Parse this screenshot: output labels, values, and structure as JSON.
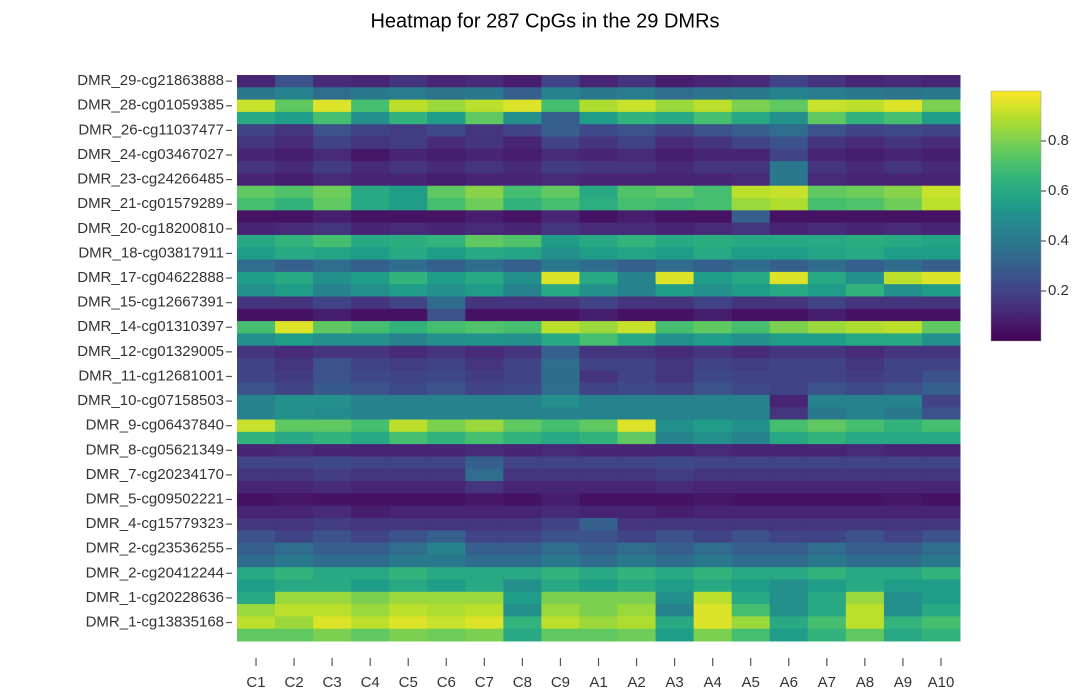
{
  "chart_data": {
    "type": "heatmap",
    "title": "Heatmap for 287 CpGs in the 29 DMRs",
    "columns": [
      "C1",
      "C2",
      "C3",
      "C4",
      "C5",
      "C6",
      "C7",
      "C8",
      "C9",
      "A1",
      "A2",
      "A3",
      "A4",
      "A5",
      "A6",
      "A7",
      "A8",
      "A9",
      "A10"
    ],
    "yticks": [
      {
        "value": 0,
        "label": "DMR_29-cg21863888"
      },
      {
        "value": 2,
        "label": "DMR_28-cg01059385"
      },
      {
        "value": 4,
        "label": "DMR_26-cg11037477"
      },
      {
        "value": 6,
        "label": "DMR_24-cg03467027"
      },
      {
        "value": 8,
        "label": "DMR_23-cg24266485"
      },
      {
        "value": 10,
        "label": "DMR_21-cg01579289"
      },
      {
        "value": 12,
        "label": "DMR_20-cg18200810"
      },
      {
        "value": 14,
        "label": "DMR_18-cg03817911"
      },
      {
        "value": 16,
        "label": "DMR_17-cg04622888"
      },
      {
        "value": 18,
        "label": "DMR_15-cg12667391"
      },
      {
        "value": 20,
        "label": "DMR_14-cg01310397"
      },
      {
        "value": 22,
        "label": "DMR_12-cg01329005"
      },
      {
        "value": 24,
        "label": "DMR_11-cg12681001"
      },
      {
        "value": 26,
        "label": "DMR_10-cg07158503"
      },
      {
        "value": 28,
        "label": "DMR_9-cg06437840"
      },
      {
        "value": 30,
        "label": "DMR_8-cg05621349"
      },
      {
        "value": 32,
        "label": "DMR_7-cg20234170"
      },
      {
        "value": 34,
        "label": "DMR_5-cg09502221"
      },
      {
        "value": 36,
        "label": "DMR_4-cg15779323"
      },
      {
        "value": 38,
        "label": "DMR_2-cg23536255"
      },
      {
        "value": 40,
        "label": "DMR_2-cg20412244"
      },
      {
        "value": 42,
        "label": "DMR_1-cg20228636"
      },
      {
        "value": 44,
        "label": "DMR_1-cg13835168"
      }
    ],
    "colormap": "viridis",
    "zlim": [
      0,
      1
    ],
    "colorbar_ticks": [
      0.2,
      0.4,
      0.6,
      0.8
    ],
    "z": [
      [
        0.1,
        0.25,
        0.12,
        0.1,
        0.15,
        0.1,
        0.12,
        0.08,
        0.2,
        0.1,
        0.15,
        0.08,
        0.1,
        0.12,
        0.2,
        0.15,
        0.1,
        0.12,
        0.1
      ],
      [
        0.4,
        0.45,
        0.35,
        0.4,
        0.42,
        0.38,
        0.4,
        0.3,
        0.45,
        0.4,
        0.42,
        0.35,
        0.38,
        0.4,
        0.45,
        0.42,
        0.4,
        0.38,
        0.4
      ],
      [
        0.92,
        0.75,
        0.95,
        0.7,
        0.9,
        0.85,
        0.9,
        0.95,
        0.7,
        0.88,
        0.92,
        0.85,
        0.9,
        0.8,
        0.75,
        0.92,
        0.9,
        0.95,
        0.8
      ],
      [
        0.6,
        0.55,
        0.7,
        0.5,
        0.65,
        0.55,
        0.75,
        0.5,
        0.3,
        0.55,
        0.65,
        0.6,
        0.7,
        0.6,
        0.5,
        0.75,
        0.65,
        0.7,
        0.55
      ],
      [
        0.2,
        0.15,
        0.25,
        0.2,
        0.18,
        0.22,
        0.15,
        0.2,
        0.3,
        0.22,
        0.25,
        0.2,
        0.25,
        0.3,
        0.35,
        0.25,
        0.2,
        0.22,
        0.2
      ],
      [
        0.15,
        0.12,
        0.2,
        0.15,
        0.18,
        0.12,
        0.15,
        0.1,
        0.2,
        0.15,
        0.2,
        0.12,
        0.15,
        0.2,
        0.25,
        0.15,
        0.12,
        0.15,
        0.12
      ],
      [
        0.1,
        0.08,
        0.12,
        0.06,
        0.1,
        0.08,
        0.1,
        0.08,
        0.12,
        0.1,
        0.12,
        0.08,
        0.1,
        0.1,
        0.2,
        0.1,
        0.08,
        0.1,
        0.08
      ],
      [
        0.15,
        0.12,
        0.18,
        0.12,
        0.15,
        0.12,
        0.15,
        0.12,
        0.18,
        0.15,
        0.15,
        0.12,
        0.15,
        0.15,
        0.4,
        0.15,
        0.12,
        0.15,
        0.12
      ],
      [
        0.1,
        0.08,
        0.12,
        0.1,
        0.1,
        0.08,
        0.1,
        0.1,
        0.12,
        0.1,
        0.1,
        0.1,
        0.1,
        0.12,
        0.4,
        0.12,
        0.1,
        0.1,
        0.1
      ],
      [
        0.75,
        0.72,
        0.78,
        0.6,
        0.55,
        0.75,
        0.82,
        0.7,
        0.75,
        0.6,
        0.72,
        0.75,
        0.7,
        0.9,
        0.92,
        0.75,
        0.78,
        0.82,
        0.92
      ],
      [
        0.7,
        0.65,
        0.75,
        0.6,
        0.55,
        0.7,
        0.78,
        0.65,
        0.7,
        0.62,
        0.7,
        0.68,
        0.7,
        0.85,
        0.88,
        0.7,
        0.72,
        0.78,
        0.9
      ],
      [
        0.05,
        0.05,
        0.08,
        0.05,
        0.05,
        0.05,
        0.08,
        0.05,
        0.1,
        0.05,
        0.08,
        0.05,
        0.05,
        0.3,
        0.05,
        0.05,
        0.05,
        0.05,
        0.05
      ],
      [
        0.1,
        0.12,
        0.15,
        0.1,
        0.12,
        0.1,
        0.12,
        0.1,
        0.15,
        0.12,
        0.12,
        0.1,
        0.12,
        0.15,
        0.1,
        0.12,
        0.1,
        0.12,
        0.1
      ],
      [
        0.6,
        0.65,
        0.7,
        0.6,
        0.62,
        0.65,
        0.75,
        0.72,
        0.55,
        0.6,
        0.65,
        0.6,
        0.62,
        0.6,
        0.6,
        0.6,
        0.62,
        0.6,
        0.58
      ],
      [
        0.55,
        0.6,
        0.58,
        0.55,
        0.6,
        0.55,
        0.6,
        0.58,
        0.5,
        0.55,
        0.58,
        0.55,
        0.6,
        0.55,
        0.55,
        0.58,
        0.6,
        0.55,
        0.55
      ],
      [
        0.35,
        0.3,
        0.35,
        0.3,
        0.35,
        0.3,
        0.35,
        0.3,
        0.4,
        0.35,
        0.3,
        0.35,
        0.3,
        0.35,
        0.3,
        0.35,
        0.3,
        0.35,
        0.3
      ],
      [
        0.55,
        0.6,
        0.5,
        0.55,
        0.65,
        0.55,
        0.6,
        0.5,
        0.95,
        0.6,
        0.45,
        0.95,
        0.55,
        0.6,
        0.95,
        0.6,
        0.5,
        0.9,
        0.95
      ],
      [
        0.5,
        0.55,
        0.45,
        0.5,
        0.55,
        0.5,
        0.55,
        0.45,
        0.6,
        0.5,
        0.45,
        0.55,
        0.5,
        0.55,
        0.6,
        0.55,
        0.65,
        0.5,
        0.55
      ],
      [
        0.15,
        0.15,
        0.2,
        0.15,
        0.2,
        0.35,
        0.15,
        0.15,
        0.15,
        0.2,
        0.15,
        0.15,
        0.2,
        0.15,
        0.15,
        0.2,
        0.15,
        0.15,
        0.15
      ],
      [
        0.05,
        0.05,
        0.08,
        0.05,
        0.05,
        0.25,
        0.05,
        0.05,
        0.05,
        0.08,
        0.05,
        0.05,
        0.08,
        0.05,
        0.05,
        0.08,
        0.05,
        0.05,
        0.05
      ],
      [
        0.7,
        0.95,
        0.75,
        0.7,
        0.65,
        0.7,
        0.72,
        0.7,
        0.9,
        0.85,
        0.92,
        0.7,
        0.75,
        0.7,
        0.8,
        0.85,
        0.88,
        0.9,
        0.75
      ],
      [
        0.5,
        0.55,
        0.5,
        0.5,
        0.45,
        0.5,
        0.52,
        0.5,
        0.6,
        0.7,
        0.6,
        0.5,
        0.55,
        0.5,
        0.55,
        0.55,
        0.6,
        0.6,
        0.5
      ],
      [
        0.15,
        0.12,
        0.15,
        0.15,
        0.12,
        0.15,
        0.12,
        0.15,
        0.3,
        0.15,
        0.15,
        0.12,
        0.15,
        0.12,
        0.15,
        0.15,
        0.12,
        0.15,
        0.15
      ],
      [
        0.2,
        0.15,
        0.25,
        0.2,
        0.18,
        0.2,
        0.15,
        0.2,
        0.35,
        0.2,
        0.2,
        0.15,
        0.2,
        0.18,
        0.2,
        0.2,
        0.15,
        0.2,
        0.2
      ],
      [
        0.2,
        0.18,
        0.25,
        0.22,
        0.2,
        0.22,
        0.18,
        0.2,
        0.35,
        0.15,
        0.2,
        0.15,
        0.22,
        0.2,
        0.2,
        0.2,
        0.18,
        0.2,
        0.25
      ],
      [
        0.25,
        0.2,
        0.28,
        0.25,
        0.22,
        0.25,
        0.2,
        0.22,
        0.35,
        0.2,
        0.22,
        0.2,
        0.25,
        0.22,
        0.2,
        0.25,
        0.22,
        0.25,
        0.3
      ],
      [
        0.45,
        0.5,
        0.5,
        0.45,
        0.45,
        0.45,
        0.45,
        0.45,
        0.5,
        0.45,
        0.45,
        0.45,
        0.45,
        0.45,
        0.1,
        0.45,
        0.45,
        0.45,
        0.2
      ],
      [
        0.45,
        0.5,
        0.48,
        0.45,
        0.45,
        0.45,
        0.45,
        0.45,
        0.45,
        0.45,
        0.45,
        0.45,
        0.45,
        0.45,
        0.15,
        0.4,
        0.45,
        0.4,
        0.25
      ],
      [
        0.92,
        0.75,
        0.75,
        0.7,
        0.9,
        0.8,
        0.85,
        0.75,
        0.7,
        0.75,
        0.95,
        0.5,
        0.55,
        0.5,
        0.7,
        0.75,
        0.7,
        0.65,
        0.7
      ],
      [
        0.65,
        0.6,
        0.65,
        0.6,
        0.7,
        0.65,
        0.7,
        0.65,
        0.6,
        0.65,
        0.75,
        0.45,
        0.5,
        0.45,
        0.6,
        0.65,
        0.6,
        0.6,
        0.6
      ],
      [
        0.1,
        0.12,
        0.1,
        0.1,
        0.1,
        0.1,
        0.12,
        0.1,
        0.12,
        0.1,
        0.1,
        0.1,
        0.12,
        0.1,
        0.1,
        0.1,
        0.12,
        0.1,
        0.1
      ],
      [
        0.2,
        0.2,
        0.22,
        0.2,
        0.2,
        0.2,
        0.3,
        0.2,
        0.2,
        0.2,
        0.2,
        0.22,
        0.2,
        0.2,
        0.2,
        0.2,
        0.2,
        0.2,
        0.2
      ],
      [
        0.15,
        0.15,
        0.18,
        0.15,
        0.15,
        0.15,
        0.35,
        0.15,
        0.15,
        0.15,
        0.15,
        0.18,
        0.15,
        0.15,
        0.15,
        0.15,
        0.15,
        0.15,
        0.15
      ],
      [
        0.1,
        0.1,
        0.12,
        0.1,
        0.1,
        0.1,
        0.15,
        0.1,
        0.1,
        0.1,
        0.1,
        0.12,
        0.1,
        0.1,
        0.1,
        0.1,
        0.1,
        0.1,
        0.1
      ],
      [
        0.05,
        0.06,
        0.05,
        0.05,
        0.05,
        0.05,
        0.06,
        0.05,
        0.08,
        0.05,
        0.05,
        0.05,
        0.06,
        0.05,
        0.05,
        0.05,
        0.05,
        0.06,
        0.05
      ],
      [
        0.1,
        0.1,
        0.12,
        0.08,
        0.1,
        0.1,
        0.1,
        0.1,
        0.12,
        0.1,
        0.1,
        0.08,
        0.1,
        0.1,
        0.1,
        0.1,
        0.1,
        0.1,
        0.1
      ],
      [
        0.15,
        0.15,
        0.18,
        0.15,
        0.15,
        0.15,
        0.15,
        0.15,
        0.2,
        0.3,
        0.15,
        0.15,
        0.15,
        0.15,
        0.15,
        0.15,
        0.15,
        0.15,
        0.15
      ],
      [
        0.25,
        0.2,
        0.25,
        0.2,
        0.25,
        0.3,
        0.2,
        0.2,
        0.25,
        0.25,
        0.2,
        0.25,
        0.2,
        0.25,
        0.2,
        0.2,
        0.25,
        0.2,
        0.25
      ],
      [
        0.3,
        0.35,
        0.3,
        0.3,
        0.35,
        0.45,
        0.3,
        0.3,
        0.35,
        0.3,
        0.35,
        0.3,
        0.35,
        0.3,
        0.3,
        0.35,
        0.3,
        0.3,
        0.35
      ],
      [
        0.35,
        0.4,
        0.35,
        0.35,
        0.4,
        0.4,
        0.35,
        0.35,
        0.4,
        0.35,
        0.4,
        0.35,
        0.4,
        0.35,
        0.35,
        0.4,
        0.35,
        0.35,
        0.4
      ],
      [
        0.6,
        0.65,
        0.6,
        0.6,
        0.65,
        0.6,
        0.6,
        0.6,
        0.65,
        0.6,
        0.65,
        0.6,
        0.65,
        0.6,
        0.6,
        0.65,
        0.6,
        0.6,
        0.65
      ],
      [
        0.55,
        0.6,
        0.6,
        0.55,
        0.6,
        0.55,
        0.6,
        0.5,
        0.6,
        0.55,
        0.6,
        0.55,
        0.6,
        0.55,
        0.5,
        0.55,
        0.6,
        0.55,
        0.55
      ],
      [
        0.6,
        0.85,
        0.85,
        0.8,
        0.85,
        0.85,
        0.85,
        0.55,
        0.8,
        0.8,
        0.8,
        0.5,
        0.9,
        0.6,
        0.5,
        0.6,
        0.85,
        0.5,
        0.55
      ],
      [
        0.85,
        0.9,
        0.9,
        0.85,
        0.9,
        0.88,
        0.9,
        0.5,
        0.85,
        0.8,
        0.85,
        0.45,
        0.95,
        0.7,
        0.5,
        0.6,
        0.9,
        0.5,
        0.6
      ],
      [
        0.9,
        0.85,
        0.95,
        0.9,
        0.95,
        0.92,
        0.95,
        0.65,
        0.9,
        0.85,
        0.88,
        0.6,
        0.95,
        0.85,
        0.6,
        0.7,
        0.9,
        0.65,
        0.7
      ],
      [
        0.75,
        0.75,
        0.8,
        0.75,
        0.8,
        0.78,
        0.8,
        0.6,
        0.75,
        0.75,
        0.78,
        0.55,
        0.8,
        0.7,
        0.55,
        0.65,
        0.75,
        0.6,
        0.65
      ]
    ]
  }
}
